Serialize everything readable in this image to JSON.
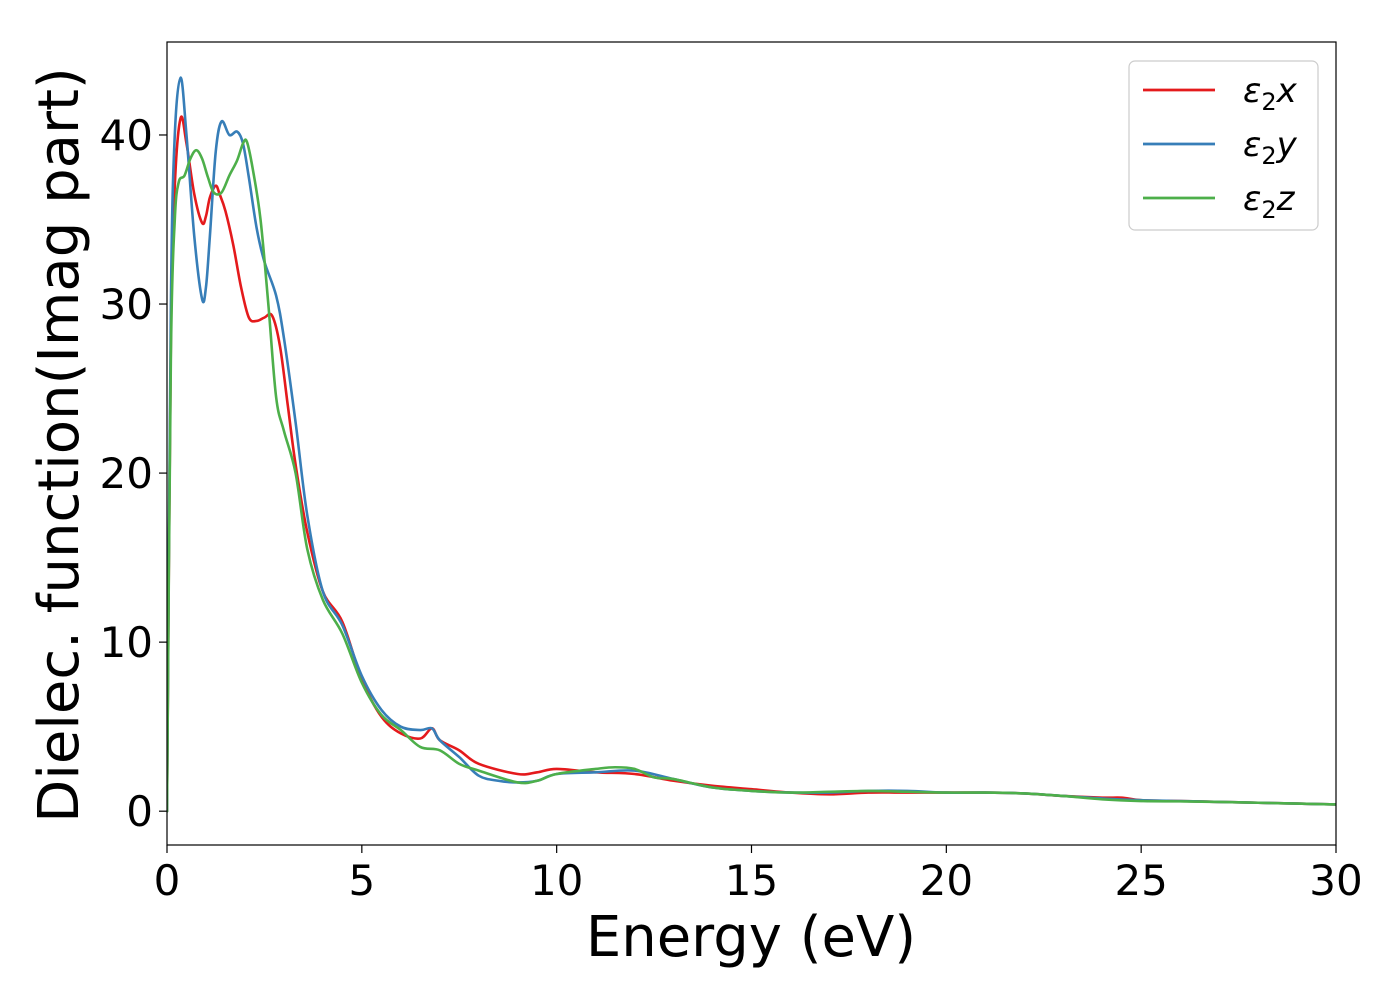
{
  "chart_data": {
    "type": "line",
    "title": "",
    "xlabel": "Energy (eV)",
    "ylabel": "Dielec. function(Imag part)",
    "xlim": [
      0,
      30
    ],
    "ylim": [
      -2,
      45.5
    ],
    "xticks": [
      0,
      5,
      10,
      15,
      20,
      25,
      30
    ],
    "xtick_labels": [
      "0",
      "5",
      "10",
      "15",
      "20",
      "25",
      "30"
    ],
    "yticks": [
      0,
      10,
      20,
      30,
      40
    ],
    "ytick_labels": [
      "0",
      "10",
      "20",
      "30",
      "40"
    ],
    "grid": false,
    "legend_position": "top-right",
    "series": [
      {
        "name": "ε2x",
        "label_base": "ε",
        "label_sub": "2",
        "label_tail": "x",
        "color": "#e41a1c",
        "x": [
          0,
          0.1,
          0.2,
          0.35,
          0.5,
          0.7,
          0.9,
          1.0,
          1.1,
          1.25,
          1.35,
          1.5,
          1.7,
          1.9,
          2.1,
          2.3,
          2.5,
          2.7,
          2.9,
          3.1,
          3.3,
          3.6,
          4.0,
          4.5,
          5.0,
          5.5,
          6.0,
          6.5,
          6.8,
          7.0,
          7.5,
          8.0,
          9.0,
          9.5,
          10.0,
          11.0,
          12.0,
          13.0,
          14.0,
          15.0,
          16.0,
          17.0,
          18.0,
          19.0,
          20.0,
          21.0,
          22.0,
          23.0,
          24.0,
          24.5,
          25.0,
          26.0,
          27.0,
          28.0,
          29.0,
          30.0
        ],
        "y": [
          0,
          28,
          37,
          41,
          39.5,
          36.5,
          34.8,
          35.2,
          36.3,
          37.0,
          36.5,
          35.5,
          33.5,
          31.0,
          29.2,
          29.0,
          29.2,
          29.3,
          27.5,
          24.0,
          20.5,
          16.5,
          13.0,
          11.2,
          7.8,
          5.6,
          4.6,
          4.3,
          4.9,
          4.2,
          3.6,
          2.8,
          2.2,
          2.3,
          2.5,
          2.3,
          2.2,
          1.8,
          1.5,
          1.3,
          1.1,
          1.0,
          1.1,
          1.1,
          1.1,
          1.1,
          1.05,
          0.9,
          0.8,
          0.8,
          0.65,
          0.6,
          0.55,
          0.5,
          0.45,
          0.4
        ]
      },
      {
        "name": "ε2y",
        "label_base": "ε",
        "label_sub": "2",
        "label_tail": "y",
        "color": "#377eb8",
        "x": [
          0,
          0.1,
          0.2,
          0.35,
          0.5,
          0.7,
          0.9,
          1.0,
          1.1,
          1.25,
          1.4,
          1.6,
          1.8,
          1.95,
          2.1,
          2.3,
          2.5,
          2.8,
          3.0,
          3.3,
          3.6,
          4.0,
          4.5,
          5.0,
          5.5,
          6.0,
          6.5,
          6.8,
          7.0,
          7.5,
          8.0,
          8.5,
          9.0,
          9.5,
          10.0,
          11.0,
          12.0,
          13.0,
          14.0,
          15.0,
          16.0,
          17.0,
          18.0,
          19.0,
          20.0,
          21.0,
          22.0,
          23.0,
          24.0,
          25.0,
          26.0,
          27.0,
          28.0,
          29.0,
          30.0
        ],
        "y": [
          0,
          30,
          40,
          43.4,
          40,
          34,
          30.3,
          31,
          34,
          39,
          40.8,
          40,
          40.2,
          39.5,
          37.5,
          34.5,
          32.5,
          30.5,
          28,
          23,
          17.5,
          13,
          11,
          8,
          6.0,
          5.0,
          4.8,
          4.9,
          4.2,
          3.2,
          2.1,
          1.8,
          1.7,
          1.8,
          2.2,
          2.3,
          2.4,
          1.9,
          1.4,
          1.2,
          1.1,
          1.1,
          1.2,
          1.2,
          1.1,
          1.1,
          1.05,
          0.9,
          0.75,
          0.65,
          0.6,
          0.55,
          0.5,
          0.45,
          0.4
        ]
      },
      {
        "name": "ε2z",
        "label_base": "ε",
        "label_sub": "2",
        "label_tail": "z",
        "color": "#4daf4a",
        "x": [
          0,
          0.1,
          0.2,
          0.3,
          0.45,
          0.6,
          0.75,
          0.9,
          1.05,
          1.2,
          1.4,
          1.6,
          1.8,
          1.95,
          2.05,
          2.2,
          2.4,
          2.6,
          2.8,
          3.0,
          3.3,
          3.6,
          4.0,
          4.5,
          5.0,
          5.5,
          6.0,
          6.5,
          7.0,
          7.5,
          8.0,
          9.0,
          9.5,
          10.0,
          11.0,
          11.5,
          12.0,
          12.5,
          13.0,
          14.0,
          15.0,
          16.0,
          17.0,
          18.0,
          19.0,
          20.0,
          21.0,
          22.0,
          23.0,
          24.0,
          25.0,
          26.0,
          27.0,
          28.0,
          29.0,
          30.0
        ],
        "y": [
          0,
          27,
          35,
          37.2,
          37.6,
          38.6,
          39.1,
          38.6,
          37.5,
          36.6,
          36.6,
          37.6,
          38.5,
          39.5,
          39.6,
          38,
          35,
          30,
          24.5,
          22.5,
          20,
          15.5,
          12.5,
          10.5,
          7.6,
          5.7,
          4.8,
          3.8,
          3.6,
          2.8,
          2.4,
          1.7,
          1.8,
          2.2,
          2.5,
          2.6,
          2.5,
          2.0,
          1.9,
          1.4,
          1.2,
          1.1,
          1.15,
          1.2,
          1.15,
          1.1,
          1.1,
          1.05,
          0.9,
          0.7,
          0.6,
          0.58,
          0.55,
          0.5,
          0.45,
          0.4
        ]
      }
    ]
  }
}
